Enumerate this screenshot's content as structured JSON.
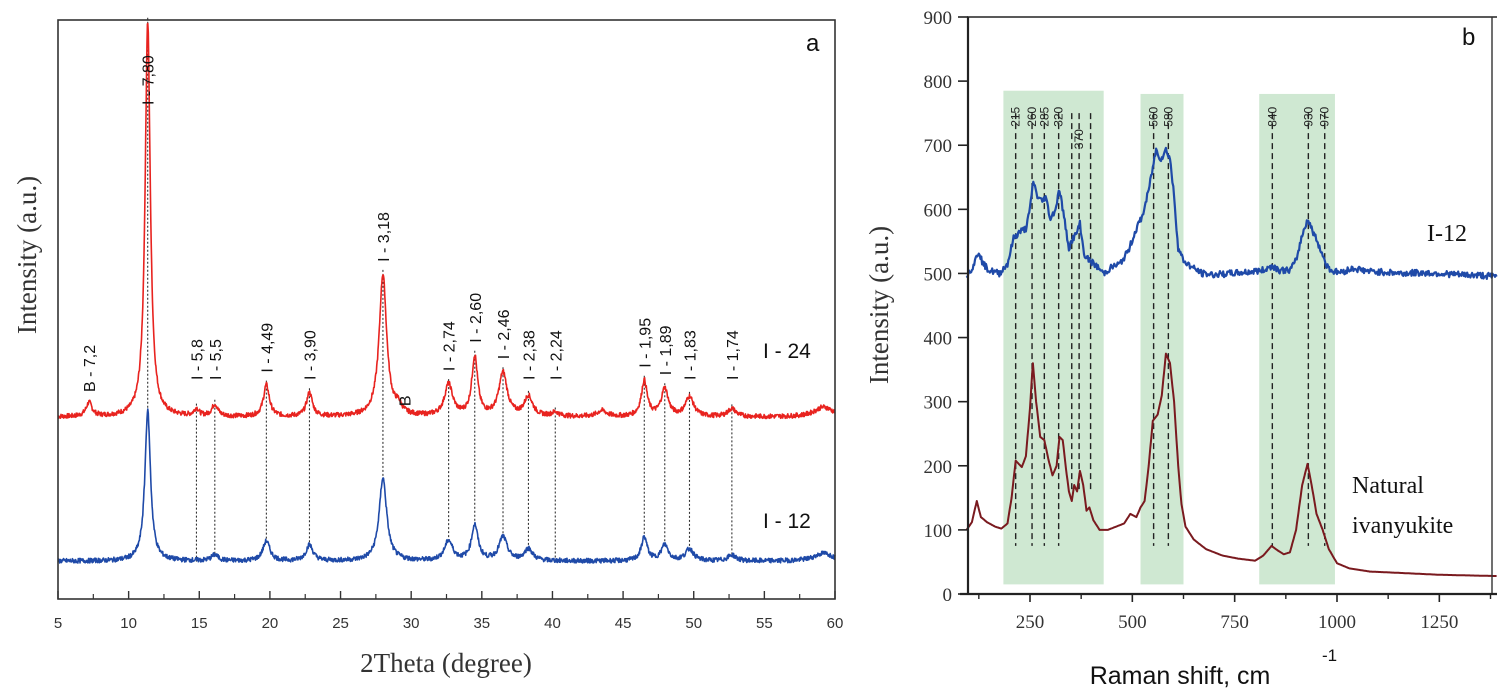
{
  "chart_data": [
    {
      "panel": "a",
      "type": "line",
      "title": "",
      "panel_label": "a",
      "xlabel": "2Theta (degree)",
      "ylabel": "Intensity (a.u.)",
      "xlim": [
        5,
        60
      ],
      "xticks": [
        5,
        10,
        15,
        20,
        25,
        30,
        35,
        40,
        45,
        50,
        55,
        60
      ],
      "grid": false,
      "colors": {
        "I-24": "#e8231f",
        "I-12": "#1f4aa8"
      },
      "series": [
        {
          "name": "I - 24",
          "color": "#e8231f",
          "baseline": 0.4,
          "peaks": [
            {
              "x": 7.2,
              "h": 0.035,
              "w": 0.25
            },
            {
              "x": 11.35,
              "h": 1.0,
              "w": 0.22
            },
            {
              "x": 14.8,
              "h": 0.018,
              "w": 0.2
            },
            {
              "x": 16.1,
              "h": 0.03,
              "w": 0.25
            },
            {
              "x": 19.75,
              "h": 0.08,
              "w": 0.25
            },
            {
              "x": 22.8,
              "h": 0.06,
              "w": 0.25
            },
            {
              "x": 28.0,
              "h": 0.36,
              "w": 0.32
            },
            {
              "x": 29.1,
              "h": 0.02,
              "w": 0.25
            },
            {
              "x": 32.65,
              "h": 0.08,
              "w": 0.35
            },
            {
              "x": 34.5,
              "h": 0.15,
              "w": 0.25
            },
            {
              "x": 36.5,
              "h": 0.11,
              "w": 0.35
            },
            {
              "x": 38.3,
              "h": 0.05,
              "w": 0.35
            },
            {
              "x": 40.2,
              "h": 0.01,
              "w": 0.3
            },
            {
              "x": 43.5,
              "h": 0.015,
              "w": 0.4
            },
            {
              "x": 46.5,
              "h": 0.09,
              "w": 0.25
            },
            {
              "x": 47.95,
              "h": 0.07,
              "w": 0.3
            },
            {
              "x": 49.7,
              "h": 0.05,
              "w": 0.35
            },
            {
              "x": 52.7,
              "h": 0.02,
              "w": 0.35
            },
            {
              "x": 59.2,
              "h": 0.025,
              "w": 0.8
            }
          ]
        },
        {
          "name": "I - 12",
          "color": "#1f4aa8",
          "baseline": 0.035,
          "peaks": [
            {
              "x": 11.35,
              "h": 0.38,
              "w": 0.24
            },
            {
              "x": 16.1,
              "h": 0.015,
              "w": 0.3
            },
            {
              "x": 19.75,
              "h": 0.05,
              "w": 0.3
            },
            {
              "x": 22.8,
              "h": 0.04,
              "w": 0.3
            },
            {
              "x": 28.0,
              "h": 0.21,
              "w": 0.32
            },
            {
              "x": 32.65,
              "h": 0.05,
              "w": 0.35
            },
            {
              "x": 34.5,
              "h": 0.09,
              "w": 0.28
            },
            {
              "x": 36.5,
              "h": 0.06,
              "w": 0.35
            },
            {
              "x": 38.3,
              "h": 0.03,
              "w": 0.35
            },
            {
              "x": 46.5,
              "h": 0.06,
              "w": 0.25
            },
            {
              "x": 47.95,
              "h": 0.04,
              "w": 0.3
            },
            {
              "x": 49.7,
              "h": 0.03,
              "w": 0.35
            },
            {
              "x": 52.7,
              "h": 0.015,
              "w": 0.35
            },
            {
              "x": 59.2,
              "h": 0.02,
              "w": 0.8
            }
          ]
        }
      ],
      "series_labels": [
        {
          "text": "I - 24",
          "series": "I - 24"
        },
        {
          "text": "I - 12",
          "series": "I - 12"
        }
      ],
      "annotations": [
        {
          "text": "B - 7,2",
          "x": 7.2,
          "dashed_line": false
        },
        {
          "text": "I - 7,80",
          "x": 11.35,
          "dashed_line": true
        },
        {
          "text": "I - 5,8",
          "x": 14.8,
          "dashed_line": true
        },
        {
          "text": "I - 5,5",
          "x": 16.1,
          "dashed_line": true
        },
        {
          "text": "I - 4,49",
          "x": 19.75,
          "dashed_line": true
        },
        {
          "text": "I - 3,90",
          "x": 22.8,
          "dashed_line": true
        },
        {
          "text": "I - 3,18",
          "x": 28.0,
          "dashed_line": true
        },
        {
          "text": "B",
          "x": 29.6,
          "dashed_line": false,
          "horizontal": true
        },
        {
          "text": "I - 2,74",
          "x": 32.65,
          "dashed_line": true
        },
        {
          "text": "I - 2,60",
          "x": 34.5,
          "dashed_line": true
        },
        {
          "text": "I - 2,46",
          "x": 36.5,
          "dashed_line": true
        },
        {
          "text": "I - 2,38",
          "x": 38.3,
          "dashed_line": true
        },
        {
          "text": "I - 2,24",
          "x": 40.2,
          "dashed_line": true
        },
        {
          "text": "I - 1,95",
          "x": 46.5,
          "dashed_line": true
        },
        {
          "text": "I - 1,89",
          "x": 47.95,
          "dashed_line": true
        },
        {
          "text": "I - 1,83",
          "x": 49.7,
          "dashed_line": true
        },
        {
          "text": "I - 1,74",
          "x": 52.7,
          "dashed_line": true
        }
      ]
    },
    {
      "panel": "b",
      "type": "line",
      "title": "",
      "panel_label": "b",
      "xlabel": "Raman shift, cm",
      "xlabel_superscript": "-1",
      "ylabel": "Intensity (a.u.)",
      "xlim": [
        95,
        1390
      ],
      "ylim": [
        0,
        900
      ],
      "xticks": [
        250,
        500,
        750,
        1000,
        1250
      ],
      "xminorticks": [
        125,
        375,
        625,
        875,
        1125,
        1375
      ],
      "yticks": [
        0,
        100,
        200,
        300,
        400,
        500,
        600,
        700,
        800,
        900
      ],
      "grid": false,
      "shaded_bands": [
        {
          "from": 185,
          "to": 430,
          "y_top": 785,
          "color": "#cfe8d2"
        },
        {
          "from": 520,
          "to": 625,
          "y_top": 780,
          "color": "#cfe8d2"
        },
        {
          "from": 810,
          "to": 995,
          "y_top": 780,
          "color": "#cfe8d2"
        }
      ],
      "band_lines": [
        {
          "x": 215,
          "label": "215"
        },
        {
          "x": 255,
          "label": "260"
        },
        {
          "x": 285,
          "label": "285"
        },
        {
          "x": 320,
          "label": "320"
        },
        {
          "x": 352,
          "label": ""
        },
        {
          "x": 370,
          "label": "370"
        },
        {
          "x": 398,
          "label": ""
        },
        {
          "x": 552,
          "label": "560"
        },
        {
          "x": 588,
          "label": "580"
        },
        {
          "x": 842,
          "label": "840"
        },
        {
          "x": 930,
          "label": "930"
        },
        {
          "x": 970,
          "label": "970"
        }
      ],
      "series": [
        {
          "name": "I-12",
          "color": "#1f4aa8",
          "points": [
            [
              95,
              498
            ],
            [
              110,
              510
            ],
            [
              125,
              535
            ],
            [
              135,
              515
            ],
            [
              150,
              505
            ],
            [
              175,
              500
            ],
            [
              195,
              515
            ],
            [
              210,
              555
            ],
            [
              225,
              565
            ],
            [
              240,
              570
            ],
            [
              250,
              600
            ],
            [
              258,
              645
            ],
            [
              268,
              620
            ],
            [
              280,
              612
            ],
            [
              288,
              620
            ],
            [
              300,
              585
            ],
            [
              312,
              600
            ],
            [
              322,
              632
            ],
            [
              335,
              580
            ],
            [
              345,
              540
            ],
            [
              355,
              555
            ],
            [
              362,
              560
            ],
            [
              372,
              578
            ],
            [
              382,
              530
            ],
            [
              395,
              520
            ],
            [
              410,
              513
            ],
            [
              430,
              500
            ],
            [
              450,
              510
            ],
            [
              470,
              515
            ],
            [
              490,
              535
            ],
            [
              510,
              570
            ],
            [
              525,
              590
            ],
            [
              540,
              630
            ],
            [
              550,
              665
            ],
            [
              558,
              693
            ],
            [
              570,
              678
            ],
            [
              582,
              693
            ],
            [
              592,
              680
            ],
            [
              602,
              620
            ],
            [
              612,
              540
            ],
            [
              625,
              520
            ],
            [
              645,
              510
            ],
            [
              670,
              500
            ],
            [
              700,
              498
            ],
            [
              740,
              500
            ],
            [
              780,
              502
            ],
            [
              820,
              505
            ],
            [
              842,
              512
            ],
            [
              860,
              505
            ],
            [
              885,
              505
            ],
            [
              900,
              520
            ],
            [
              915,
              560
            ],
            [
              928,
              585
            ],
            [
              938,
              570
            ],
            [
              955,
              545
            ],
            [
              975,
              512
            ],
            [
              990,
              503
            ],
            [
              1010,
              502
            ],
            [
              1040,
              508
            ],
            [
              1080,
              503
            ],
            [
              1120,
              502
            ],
            [
              1160,
              500
            ],
            [
              1200,
              501
            ],
            [
              1250,
              500
            ],
            [
              1300,
              498
            ],
            [
              1350,
              497
            ],
            [
              1390,
              495
            ]
          ]
        },
        {
          "name": "Natural ivanyukite",
          "color": "#7a1a1f",
          "points": [
            [
              95,
              100
            ],
            [
              108,
              112
            ],
            [
              120,
              145
            ],
            [
              130,
              120
            ],
            [
              145,
              112
            ],
            [
              165,
              105
            ],
            [
              180,
              102
            ],
            [
              195,
              110
            ],
            [
              205,
              150
            ],
            [
              215,
              208
            ],
            [
              230,
              198
            ],
            [
              240,
              215
            ],
            [
              250,
              290
            ],
            [
              257,
              360
            ],
            [
              265,
              300
            ],
            [
              275,
              245
            ],
            [
              285,
              240
            ],
            [
              295,
              210
            ],
            [
              305,
              185
            ],
            [
              315,
              200
            ],
            [
              322,
              245
            ],
            [
              330,
              240
            ],
            [
              338,
              195
            ],
            [
              345,
              160
            ],
            [
              352,
              145
            ],
            [
              358,
              170
            ],
            [
              365,
              160
            ],
            [
              372,
              192
            ],
            [
              380,
              170
            ],
            [
              388,
              130
            ],
            [
              395,
              135
            ],
            [
              405,
              115
            ],
            [
              420,
              100
            ],
            [
              440,
              100
            ],
            [
              460,
              105
            ],
            [
              480,
              110
            ],
            [
              495,
              125
            ],
            [
              510,
              120
            ],
            [
              520,
              135
            ],
            [
              530,
              145
            ],
            [
              540,
              200
            ],
            [
              550,
              270
            ],
            [
              562,
              280
            ],
            [
              572,
              310
            ],
            [
              582,
              375
            ],
            [
              592,
              360
            ],
            [
              602,
              300
            ],
            [
              612,
              200
            ],
            [
              620,
              140
            ],
            [
              630,
              105
            ],
            [
              650,
              85
            ],
            [
              680,
              70
            ],
            [
              720,
              60
            ],
            [
              760,
              55
            ],
            [
              800,
              52
            ],
            [
              820,
              60
            ],
            [
              840,
              75
            ],
            [
              855,
              68
            ],
            [
              870,
              62
            ],
            [
              885,
              65
            ],
            [
              900,
              100
            ],
            [
              915,
              170
            ],
            [
              928,
              203
            ],
            [
              938,
              170
            ],
            [
              950,
              125
            ],
            [
              965,
              100
            ],
            [
              980,
              70
            ],
            [
              1000,
              48
            ],
            [
              1030,
              40
            ],
            [
              1080,
              35
            ],
            [
              1150,
              33
            ],
            [
              1250,
              30
            ],
            [
              1390,
              28
            ]
          ]
        }
      ],
      "series_labels": [
        {
          "text": "I-12",
          "series": "I-12"
        },
        {
          "text": "Natural",
          "series": "Natural ivanyukite"
        },
        {
          "text": "ivanyukite",
          "series": "Natural ivanyukite"
        }
      ]
    }
  ]
}
